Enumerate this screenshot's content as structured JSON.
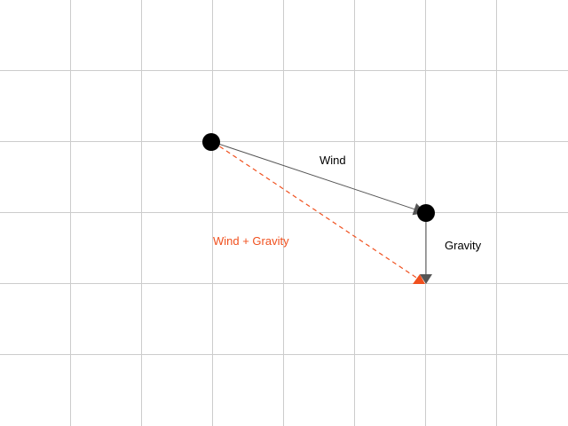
{
  "labels": {
    "wind": "Wind",
    "gravity": "Gravity",
    "resultant": "Wind + Gravity"
  },
  "colors": {
    "background": "#ffffff",
    "grid": "#cccccc",
    "vector": "#555555",
    "resultant": "#f0501e",
    "point": "#000000",
    "text": "#000000"
  },
  "vectors": {
    "wind": {
      "dx": 3,
      "dy": 1
    },
    "gravity": {
      "dx": 0,
      "dy": 1
    }
  }
}
